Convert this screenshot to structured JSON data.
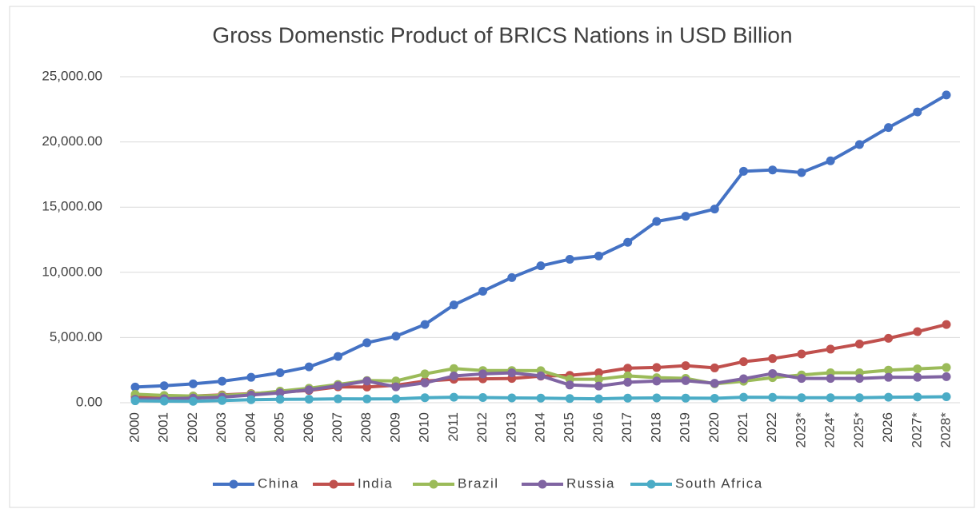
{
  "chart_data": {
    "type": "line",
    "title": "Gross Domenstic Product of BRICS Nations in USD Billion",
    "categories": [
      "2000",
      "2001",
      "2002",
      "2003",
      "2004",
      "2005",
      "2006",
      "2007",
      "2008",
      "2009",
      "2010",
      "2011",
      "2012",
      "2013",
      "2014",
      "2015",
      "2016",
      "2017",
      "2018",
      "2019",
      "2020",
      "2021",
      "2022",
      "2023*",
      "2024*",
      "2025*",
      "2026",
      "2027*",
      "2028*"
    ],
    "series": [
      {
        "name": "China",
        "color": "#4472c4",
        "values": [
          1200,
          1300,
          1450,
          1650,
          1950,
          2300,
          2750,
          3550,
          4600,
          5100,
          6000,
          7500,
          8550,
          9600,
          10500,
          11000,
          11250,
          12300,
          13900,
          14300,
          14850,
          17750,
          17850,
          17650,
          18550,
          19800,
          21100,
          22300,
          23600
        ]
      },
      {
        "name": "India",
        "color": "#c0504d",
        "values": [
          470,
          490,
          510,
          600,
          700,
          820,
          940,
          1220,
          1200,
          1340,
          1660,
          1800,
          1830,
          1860,
          2040,
          2100,
          2300,
          2650,
          2700,
          2840,
          2670,
          3150,
          3390,
          3740,
          4110,
          4500,
          4940,
          5450,
          6000
        ]
      },
      {
        "name": "Brazil",
        "color": "#9bbb59",
        "values": [
          650,
          560,
          510,
          560,
          670,
          890,
          1110,
          1400,
          1700,
          1670,
          2210,
          2620,
          2470,
          2470,
          2460,
          1800,
          1800,
          2060,
          1920,
          1870,
          1450,
          1650,
          1920,
          2130,
          2300,
          2300,
          2500,
          2600,
          2700
        ]
      },
      {
        "name": "Russia",
        "color": "#8064a2",
        "values": [
          260,
          310,
          350,
          430,
          590,
          760,
          990,
          1300,
          1660,
          1220,
          1520,
          2050,
          2210,
          2290,
          2060,
          1360,
          1280,
          1570,
          1660,
          1690,
          1490,
          1840,
          2240,
          1860,
          1860,
          1860,
          1950,
          1950,
          2000
        ]
      },
      {
        "name": "South Africa",
        "color": "#4bacc6",
        "values": [
          150,
          120,
          110,
          170,
          230,
          260,
          270,
          300,
          290,
          300,
          380,
          420,
          400,
          370,
          350,
          320,
          300,
          350,
          370,
          350,
          340,
          420,
          410,
          380,
          380,
          380,
          420,
          440,
          460
        ]
      }
    ],
    "ylim": [
      0,
      25000
    ],
    "yticks": [
      {
        "value": 0,
        "label": "0.00"
      },
      {
        "value": 5000,
        "label": "5,000.00"
      },
      {
        "value": 10000,
        "label": "10,000.00"
      },
      {
        "value": 15000,
        "label": "15,000.00"
      },
      {
        "value": 20000,
        "label": "20,000.00"
      },
      {
        "value": 25000,
        "label": "25,000.00"
      }
    ],
    "grid": true,
    "legend": "bottom"
  }
}
